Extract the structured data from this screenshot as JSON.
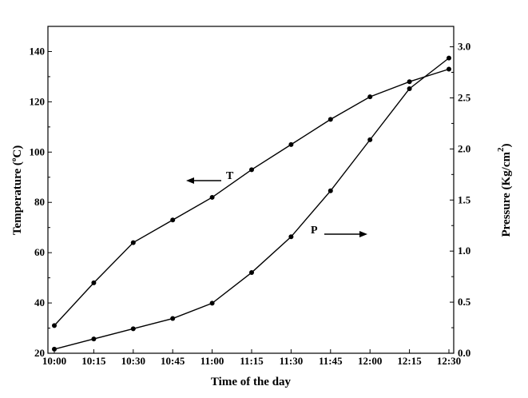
{
  "chart_data": {
    "type": "line",
    "x": [
      "10:00",
      "10:15",
      "10:30",
      "10:45",
      "11:00",
      "11:15",
      "11:30",
      "11:45",
      "12:00",
      "12:15",
      "12:30"
    ],
    "xlabel": "Time of the day",
    "ylabel": "Temperature (",
    "ylabel_unit": "C)",
    "ylabel_degree": "o",
    "y2label": "Pressure (Kg/cm",
    "y2label_sup": "2",
    "y2label_close": ")",
    "ylim": [
      20,
      150
    ],
    "y2lim": [
      0,
      3.2
    ],
    "yticks": [
      "20",
      "40",
      "60",
      "80",
      "100",
      "120",
      "140"
    ],
    "y2ticks": [
      "0.0",
      "0.5",
      "1.0",
      "1.5",
      "2.0",
      "2.5",
      "3.0"
    ],
    "grid": false,
    "series": [
      {
        "name": "T",
        "axis": "left",
        "values": [
          31,
          48,
          64,
          73,
          82,
          93,
          103,
          113,
          122,
          128,
          133
        ]
      },
      {
        "name": "P",
        "axis": "right",
        "values": [
          0.04,
          0.14,
          0.24,
          0.34,
          0.49,
          0.79,
          1.14,
          1.59,
          2.09,
          2.59,
          2.89
        ]
      }
    ]
  }
}
